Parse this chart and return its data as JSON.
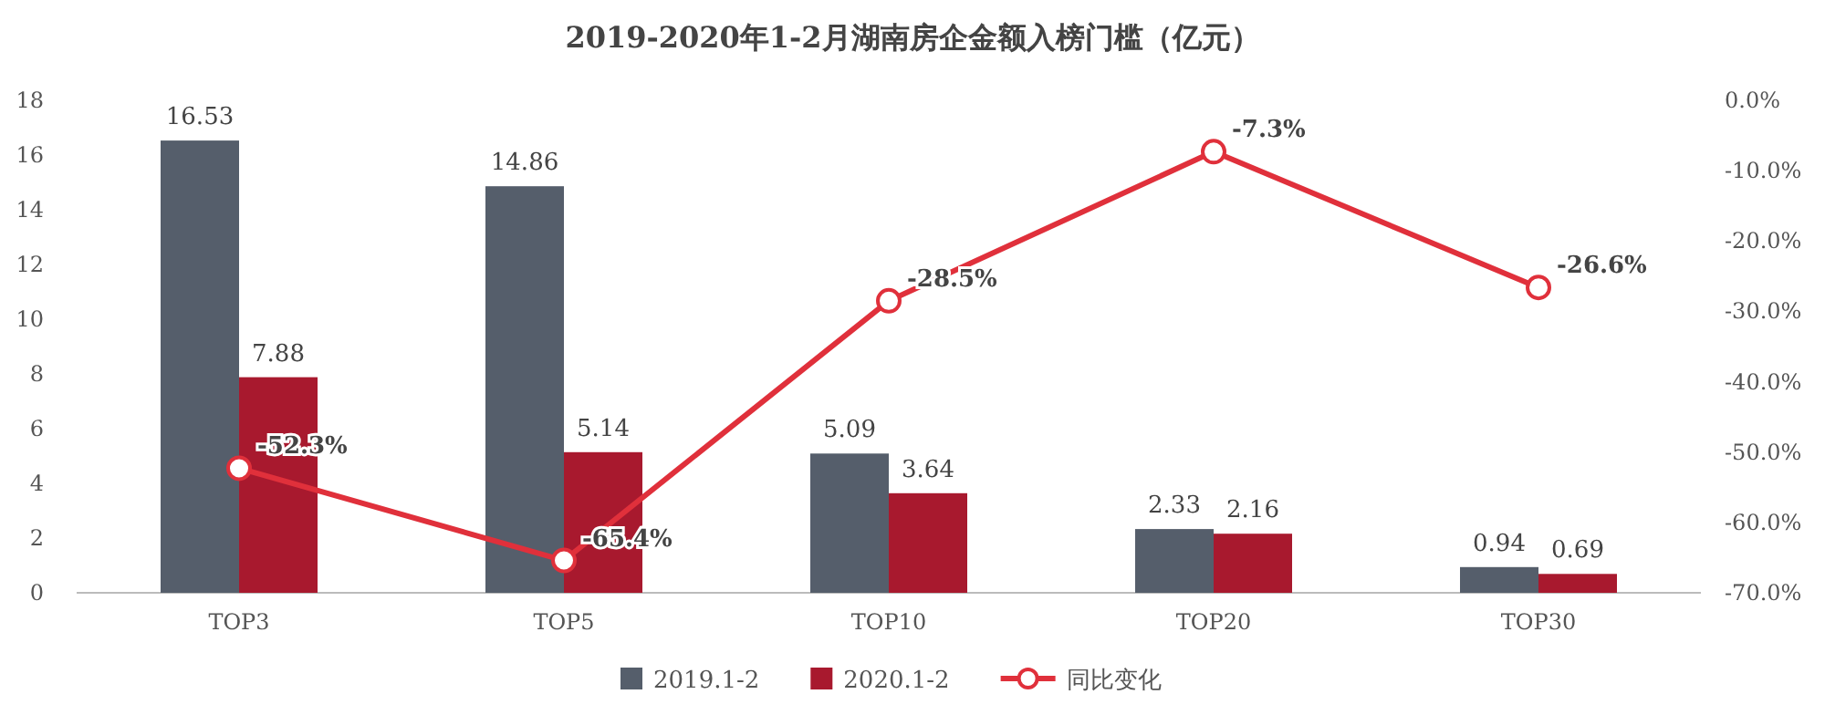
{
  "chart_data": {
    "type": "bar",
    "title": "2019-2020年1-2月湖南房企金额入榜门槛（亿元）",
    "categories": [
      "TOP3",
      "TOP5",
      "TOP10",
      "TOP20",
      "TOP30"
    ],
    "series": [
      {
        "name": "2019.1-2",
        "color": "#555e6b",
        "values": [
          16.53,
          14.86,
          5.09,
          2.33,
          0.94
        ],
        "value_labels": [
          "16.53",
          "14.86",
          "5.09",
          "2.33",
          "0.94"
        ]
      },
      {
        "name": "2020.1-2",
        "color": "#a8192e",
        "values": [
          7.88,
          5.14,
          3.64,
          2.16,
          0.69
        ],
        "value_labels": [
          "7.88",
          "5.14",
          "3.64",
          "2.16",
          "0.69"
        ]
      },
      {
        "name": "同比变化",
        "type": "line",
        "axis": "y2",
        "color": "#e0303b",
        "marker": "circle",
        "values": [
          -52.3,
          -65.4,
          -28.5,
          -7.3,
          -26.6
        ],
        "value_labels": [
          "-52.3%",
          "-65.4%",
          "-28.5%",
          "-7.3%",
          "-26.6%"
        ]
      }
    ],
    "ylim": [
      0,
      18
    ],
    "yticks": [
      0,
      2,
      4,
      6,
      8,
      10,
      12,
      14,
      16,
      18
    ],
    "y2lim": [
      -70,
      0
    ],
    "y2ticks": [
      {
        "value": 0,
        "label": "0.0%"
      },
      {
        "value": -10,
        "label": "-10.0%"
      },
      {
        "value": -20,
        "label": "-20.0%"
      },
      {
        "value": -30,
        "label": "-30.0%"
      },
      {
        "value": -40,
        "label": "-40.0%"
      },
      {
        "value": -50,
        "label": "-50.0%"
      },
      {
        "value": -60,
        "label": "-60.0%"
      },
      {
        "value": -70,
        "label": "-70.0%"
      }
    ],
    "legend": "bottom",
    "grid": false
  }
}
